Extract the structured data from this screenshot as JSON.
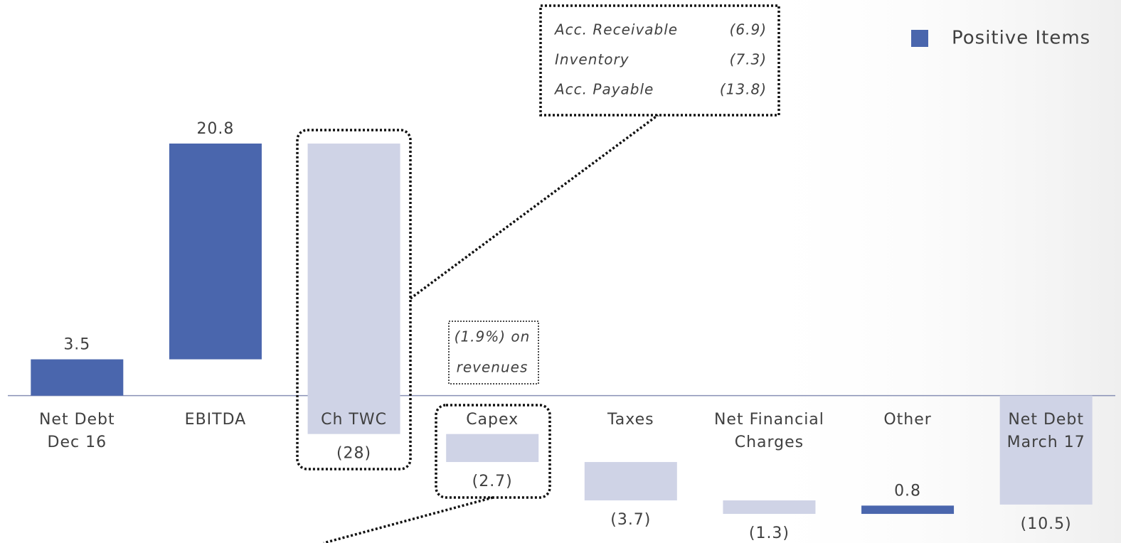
{
  "chart_data": {
    "type": "waterfall",
    "categories": [
      "Net Debt\nDec 16",
      "EBITDA",
      "Ch TWC",
      "Capex",
      "Taxes",
      "Net Financial\nCharges",
      "Other",
      "Net Debt\nMarch 17"
    ],
    "values": [
      3.5,
      20.8,
      -28,
      -2.7,
      -3.7,
      -1.3,
      0.8,
      -10.5
    ],
    "value_labels": [
      "3.5",
      "20.8",
      "(28)",
      "(2.7)",
      "(3.7)",
      "(1.3)",
      "0.8",
      "(10.5)"
    ],
    "measure": [
      "absolute",
      "relative",
      "relative",
      "relative",
      "relative",
      "relative",
      "relative",
      "total"
    ],
    "positive_color": "#4a66ad",
    "negative_color": "#cfd3e6",
    "legend": {
      "name": "Positive Items",
      "color": "#4a66ad",
      "position": "upper right"
    },
    "ylim": [
      -14,
      38
    ],
    "annotations": {
      "breakdown": [
        {
          "label": "Acc. Receivable",
          "value": "(6.9)"
        },
        {
          "label": "Inventory",
          "value": "(7.3)"
        },
        {
          "label": "Acc. Payable",
          "value": "(13.8)"
        }
      ],
      "note": [
        "(1.9%) on",
        "revenues"
      ]
    }
  }
}
